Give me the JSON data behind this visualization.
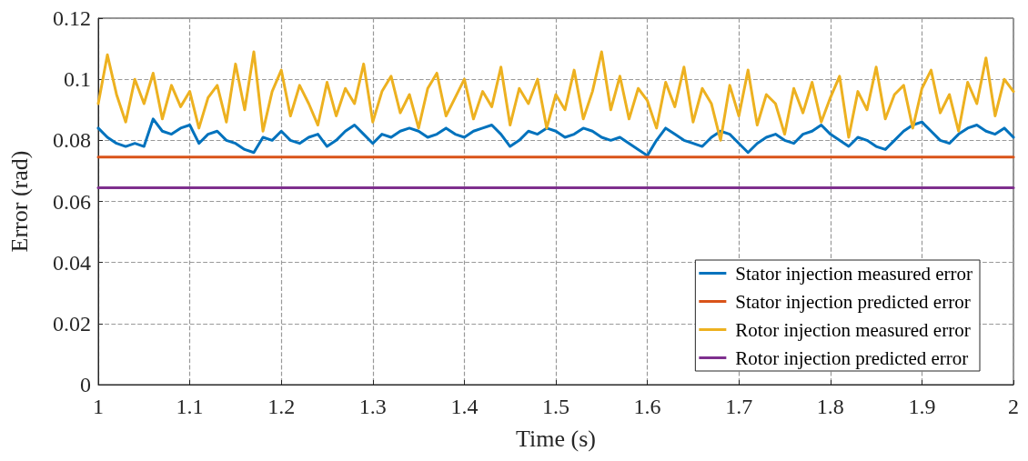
{
  "chart_data": {
    "type": "line",
    "xlabel": "Time (s)",
    "ylabel": "Error (rad)",
    "x": [
      1,
      1.01,
      1.02,
      1.03,
      1.04,
      1.05,
      1.06,
      1.07,
      1.08,
      1.09,
      1.1,
      1.11,
      1.12,
      1.13,
      1.14,
      1.15,
      1.16,
      1.17,
      1.18,
      1.19,
      1.2,
      1.21,
      1.22,
      1.23,
      1.24,
      1.25,
      1.26,
      1.27,
      1.28,
      1.29,
      1.3,
      1.31,
      1.32,
      1.33,
      1.34,
      1.35,
      1.36,
      1.37,
      1.38,
      1.39,
      1.4,
      1.41,
      1.42,
      1.43,
      1.44,
      1.45,
      1.46,
      1.47,
      1.48,
      1.49,
      1.5,
      1.51,
      1.52,
      1.53,
      1.54,
      1.55,
      1.56,
      1.57,
      1.58,
      1.59,
      1.6,
      1.61,
      1.62,
      1.63,
      1.64,
      1.65,
      1.66,
      1.67,
      1.68,
      1.69,
      1.7,
      1.71,
      1.72,
      1.73,
      1.74,
      1.75,
      1.76,
      1.77,
      1.78,
      1.79,
      1.8,
      1.81,
      1.82,
      1.83,
      1.84,
      1.85,
      1.86,
      1.87,
      1.88,
      1.89,
      1.9,
      1.91,
      1.92,
      1.93,
      1.94,
      1.95,
      1.96,
      1.97,
      1.98,
      1.99,
      2
    ],
    "series": [
      {
        "name": "Stator injection measured error",
        "color": "#0072bd",
        "values": [
          0.084,
          0.081,
          0.079,
          0.078,
          0.079,
          0.078,
          0.087,
          0.083,
          0.082,
          0.084,
          0.085,
          0.079,
          0.082,
          0.083,
          0.08,
          0.079,
          0.077,
          0.076,
          0.081,
          0.08,
          0.083,
          0.08,
          0.079,
          0.081,
          0.082,
          0.078,
          0.08,
          0.083,
          0.085,
          0.082,
          0.079,
          0.082,
          0.081,
          0.083,
          0.084,
          0.083,
          0.081,
          0.082,
          0.084,
          0.082,
          0.081,
          0.083,
          0.084,
          0.085,
          0.082,
          0.078,
          0.08,
          0.083,
          0.082,
          0.084,
          0.083,
          0.081,
          0.082,
          0.084,
          0.083,
          0.081,
          0.08,
          0.081,
          0.079,
          0.077,
          0.075,
          0.08,
          0.084,
          0.082,
          0.08,
          0.079,
          0.078,
          0.081,
          0.083,
          0.082,
          0.079,
          0.076,
          0.079,
          0.081,
          0.082,
          0.08,
          0.079,
          0.082,
          0.083,
          0.085,
          0.082,
          0.08,
          0.078,
          0.081,
          0.08,
          0.078,
          0.077,
          0.08,
          0.083,
          0.085,
          0.086,
          0.083,
          0.08,
          0.079,
          0.082,
          0.084,
          0.085,
          0.083,
          0.082,
          0.084,
          0.081
        ]
      },
      {
        "name": "Stator injection predicted error",
        "color": "#d95319",
        "values": [
          0.0745,
          0.0745,
          0.0745,
          0.0745,
          0.0745,
          0.0745,
          0.0745,
          0.0745,
          0.0745,
          0.0745,
          0.0745,
          0.0745,
          0.0745,
          0.0745,
          0.0745,
          0.0745,
          0.0745,
          0.0745,
          0.0745,
          0.0745,
          0.0745,
          0.0745,
          0.0745,
          0.0745,
          0.0745,
          0.0745,
          0.0745,
          0.0745,
          0.0745,
          0.0745,
          0.0745,
          0.0745,
          0.0745,
          0.0745,
          0.0745,
          0.0745,
          0.0745,
          0.0745,
          0.0745,
          0.0745,
          0.0745,
          0.0745,
          0.0745,
          0.0745,
          0.0745,
          0.0745,
          0.0745,
          0.0745,
          0.0745,
          0.0745,
          0.0745,
          0.0745,
          0.0745,
          0.0745,
          0.0745,
          0.0745,
          0.0745,
          0.0745,
          0.0745,
          0.0745,
          0.0745,
          0.0745,
          0.0745,
          0.0745,
          0.0745,
          0.0745,
          0.0745,
          0.0745,
          0.0745,
          0.0745,
          0.0745,
          0.0745,
          0.0745,
          0.0745,
          0.0745,
          0.0745,
          0.0745,
          0.0745,
          0.0745,
          0.0745,
          0.0745,
          0.0745,
          0.0745,
          0.0745,
          0.0745,
          0.0745,
          0.0745,
          0.0745,
          0.0745,
          0.0745,
          0.0745,
          0.0745,
          0.0745,
          0.0745,
          0.0745,
          0.0745,
          0.0745,
          0.0745,
          0.0745,
          0.0745,
          0.0745
        ]
      },
      {
        "name": "Rotor injection measured error",
        "color": "#edb120",
        "values": [
          0.092,
          0.108,
          0.095,
          0.086,
          0.1,
          0.092,
          0.102,
          0.087,
          0.098,
          0.091,
          0.096,
          0.084,
          0.094,
          0.098,
          0.086,
          0.105,
          0.09,
          0.109,
          0.083,
          0.096,
          0.103,
          0.088,
          0.098,
          0.092,
          0.085,
          0.099,
          0.088,
          0.097,
          0.092,
          0.105,
          0.086,
          0.096,
          0.101,
          0.089,
          0.095,
          0.084,
          0.097,
          0.102,
          0.088,
          0.094,
          0.1,
          0.087,
          0.096,
          0.091,
          0.104,
          0.085,
          0.097,
          0.092,
          0.1,
          0.084,
          0.095,
          0.09,
          0.103,
          0.087,
          0.096,
          0.109,
          0.09,
          0.101,
          0.087,
          0.097,
          0.093,
          0.084,
          0.099,
          0.091,
          0.104,
          0.086,
          0.097,
          0.092,
          0.08,
          0.098,
          0.088,
          0.103,
          0.085,
          0.095,
          0.092,
          0.082,
          0.097,
          0.089,
          0.099,
          0.086,
          0.094,
          0.101,
          0.081,
          0.096,
          0.09,
          0.104,
          0.087,
          0.095,
          0.098,
          0.084,
          0.097,
          0.103,
          0.089,
          0.095,
          0.083,
          0.099,
          0.092,
          0.107,
          0.088,
          0.1,
          0.096
        ]
      },
      {
        "name": "Rotor injection predicted error",
        "color": "#7e2f8e",
        "values": [
          0.0645,
          0.0645,
          0.0645,
          0.0645,
          0.0645,
          0.0645,
          0.0645,
          0.0645,
          0.0645,
          0.0645,
          0.0645,
          0.0645,
          0.0645,
          0.0645,
          0.0645,
          0.0645,
          0.0645,
          0.0645,
          0.0645,
          0.0645,
          0.0645,
          0.0645,
          0.0645,
          0.0645,
          0.0645,
          0.0645,
          0.0645,
          0.0645,
          0.0645,
          0.0645,
          0.0645,
          0.0645,
          0.0645,
          0.0645,
          0.0645,
          0.0645,
          0.0645,
          0.0645,
          0.0645,
          0.0645,
          0.0645,
          0.0645,
          0.0645,
          0.0645,
          0.0645,
          0.0645,
          0.0645,
          0.0645,
          0.0645,
          0.0645,
          0.0645,
          0.0645,
          0.0645,
          0.0645,
          0.0645,
          0.0645,
          0.0645,
          0.0645,
          0.0645,
          0.0645,
          0.0645,
          0.0645,
          0.0645,
          0.0645,
          0.0645,
          0.0645,
          0.0645,
          0.0645,
          0.0645,
          0.0645,
          0.0645,
          0.0645,
          0.0645,
          0.0645,
          0.0645,
          0.0645,
          0.0645,
          0.0645,
          0.0645,
          0.0645,
          0.0645,
          0.0645,
          0.0645,
          0.0645,
          0.0645,
          0.0645,
          0.0645,
          0.0645,
          0.0645,
          0.0645,
          0.0645,
          0.0645,
          0.0645,
          0.0645,
          0.0645,
          0.0645,
          0.0645,
          0.0645,
          0.0645,
          0.0645,
          0.0645
        ]
      }
    ],
    "xlim": [
      1,
      2
    ],
    "xticks": [
      1,
      1.1,
      1.2,
      1.3,
      1.4,
      1.5,
      1.6,
      1.7,
      1.8,
      1.9,
      2
    ],
    "ylim": [
      0,
      0.12
    ],
    "yticks": [
      0,
      0.02,
      0.04,
      0.06,
      0.08,
      0.1,
      0.12
    ],
    "grid": true,
    "legend": "bottom right",
    "marker": "none",
    "line_style": "solid"
  }
}
